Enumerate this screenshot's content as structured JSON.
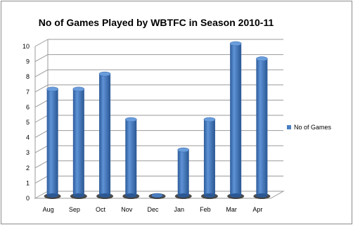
{
  "chart_data": {
    "type": "bar",
    "title": "No of Games Played by WBTFC in Season 2010-11",
    "categories": [
      "Aug",
      "Sep",
      "Oct",
      "Nov",
      "Dec",
      "Jan",
      "Feb",
      "Mar",
      "Apr"
    ],
    "series": [
      {
        "name": "No of Games",
        "values": [
          7,
          7,
          8,
          5,
          0,
          3,
          5,
          10,
          9
        ],
        "color": "#4a7ec2"
      }
    ],
    "ylim": [
      0,
      10
    ],
    "yticks": [
      0,
      1,
      2,
      3,
      4,
      5,
      6,
      7,
      8,
      9,
      10
    ],
    "grid": true,
    "legend": "right",
    "style": "3d-cylinder"
  }
}
